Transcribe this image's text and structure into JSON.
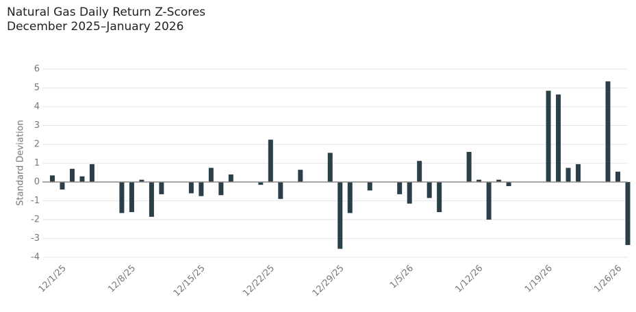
{
  "chart_data": {
    "type": "bar",
    "title": "Natural Gas Daily Return Z-Scores",
    "subtitle": "December 2025–January 2026",
    "y_label": "Standard Deviation",
    "color": "#2b3f48",
    "x": [
      "12/1/25",
      "12/2/25",
      "12/3/25",
      "12/4/25",
      "12/5/25",
      "12/8/25",
      "12/9/25",
      "12/10/25",
      "12/11/25",
      "12/12/25",
      "12/15/25",
      "12/16/25",
      "12/17/25",
      "12/18/25",
      "12/19/25",
      "12/22/25",
      "12/23/25",
      "12/24/25",
      "12/26/25",
      "12/29/25",
      "12/30/25",
      "12/31/25",
      "1/2/26",
      "1/5/26",
      "1/6/26",
      "1/7/26",
      "1/8/26",
      "1/9/26",
      "1/12/26",
      "1/13/26",
      "1/14/26",
      "1/15/26",
      "1/16/26",
      "1/20/26",
      "1/21/26",
      "1/22/26",
      "1/23/26",
      "1/26/26",
      "1/27/26",
      "1/28/26"
    ],
    "values": [
      0.35,
      -0.4,
      0.7,
      0.3,
      0.95,
      -1.65,
      -1.6,
      0.12,
      -1.85,
      -0.65,
      -0.6,
      -0.75,
      0.75,
      -0.7,
      0.4,
      -0.15,
      2.25,
      -0.9,
      0.65,
      1.55,
      -3.55,
      -1.65,
      -0.45,
      -0.65,
      -1.15,
      1.12,
      -0.85,
      -1.6,
      1.6,
      0.12,
      -2.0,
      0.12,
      -0.22,
      4.85,
      4.65,
      0.75,
      0.95,
      5.35,
      0.55,
      -3.35
    ],
    "xlim": [
      "11/30/25",
      "1/28/26"
    ],
    "xticks": [
      "12/1/25",
      "12/8/25",
      "12/15/25",
      "12/22/25",
      "12/29/25",
      "1/5/26",
      "1/12/26",
      "1/19/26",
      "1/26/26"
    ],
    "ylim": [
      -4,
      6
    ],
    "yticks": [
      -4,
      -3,
      -2,
      -1,
      0,
      1,
      2,
      3,
      4,
      5,
      6
    ],
    "grid": true
  }
}
